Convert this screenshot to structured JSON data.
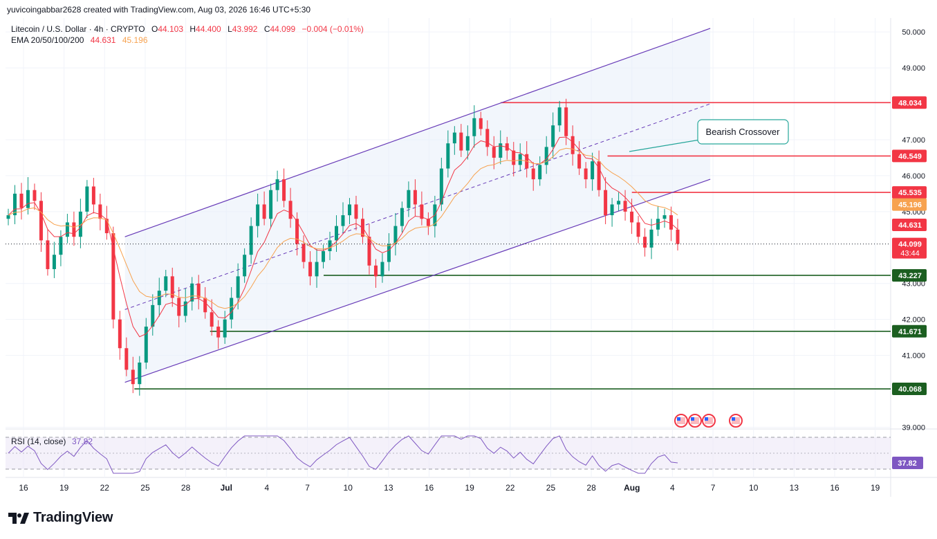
{
  "credit": "yuvicoingabbar2628 created with TradingView.com, Aug 03, 2026 16:46 UTC+5:30",
  "legend": {
    "symbol": "Litecoin / U.S. Dollar · 4h · CRYPTO",
    "o_label": "O",
    "o_value": "44.103",
    "h_label": "H",
    "h_value": "44.400",
    "l_label": "L",
    "l_value": "43.992",
    "c_label": "C",
    "c_value": "44.099",
    "change": "−0.004 (−0.01%)",
    "ema_label": "EMA 20/50/100/200",
    "ema1_value": "44.631",
    "ema2_value": "45.196"
  },
  "rsi_legend": {
    "label": "RSI (14, close)",
    "value": "37.82"
  },
  "annotation": "Bearish Crossover",
  "brand": "TradingView",
  "colors": {
    "up": "#089981",
    "down": "#f23645",
    "ema_fast": "#f23645",
    "ema_slow": "#f7a24f",
    "channel": "#673ab7",
    "resistance": "#f23645",
    "support": "#1b5e20",
    "rsi": "#7e57c2"
  },
  "chart_data": {
    "type": "candlestick",
    "timeframe": "4h",
    "x_ticks": [
      "16",
      "19",
      "22",
      "25",
      "28",
      "Jul",
      "4",
      "7",
      "10",
      "13",
      "16",
      "19",
      "22",
      "25",
      "28",
      "Aug",
      "4",
      "7",
      "10",
      "13",
      "16",
      "19"
    ],
    "y_ticks": [
      "50.000",
      "49.000",
      "47.000",
      "46.000",
      "45.000",
      "43.000",
      "42.000",
      "41.000",
      "39.000"
    ],
    "ylim": [
      38.75,
      50.2
    ],
    "price_labels": [
      {
        "value": "48.034",
        "kind": "resistance"
      },
      {
        "value": "46.549",
        "kind": "resistance"
      },
      {
        "value": "45.535",
        "kind": "resistance"
      },
      {
        "value": "45.196",
        "kind": "ema_slow"
      },
      {
        "value": "44.631",
        "kind": "ema_fast"
      },
      {
        "value": "44.099",
        "kind": "last",
        "sub": "43:44"
      },
      {
        "value": "43.227",
        "kind": "support"
      },
      {
        "value": "41.671",
        "kind": "support"
      },
      {
        "value": "40.068",
        "kind": "support"
      }
    ],
    "horizontal_levels": {
      "resistance": [
        48.034,
        46.549,
        45.535
      ],
      "support": [
        43.227,
        41.671,
        40.068
      ]
    },
    "channel": {
      "upper": [
        [
          "Jun 23",
          44.3
        ],
        [
          "Aug 5",
          50.1
        ]
      ],
      "lower": [
        [
          "Jun 23",
          40.25
        ],
        [
          "Aug 5",
          45.9
        ]
      ]
    },
    "close_series": [
      44.9,
      45.5,
      45.1,
      45.6,
      45.3,
      44.2,
      43.4,
      43.8,
      44.3,
      44.7,
      44.3,
      45.0,
      45.7,
      45.2,
      44.8,
      44.4,
      42.0,
      41.2,
      40.6,
      40.2,
      40.8,
      41.8,
      42.4,
      42.8,
      43.2,
      42.6,
      42.1,
      42.5,
      43.0,
      42.6,
      42.2,
      41.8,
      41.5,
      42.0,
      42.6,
      43.2,
      43.8,
      44.6,
      45.2,
      44.8,
      45.6,
      45.9,
      45.3,
      44.8,
      44.1,
      43.6,
      43.2,
      43.6,
      43.9,
      44.2,
      44.6,
      44.9,
      45.2,
      44.8,
      44.3,
      43.5,
      43.2,
      43.6,
      44.1,
      44.6,
      45.1,
      45.6,
      45.2,
      44.8,
      44.6,
      45.2,
      46.2,
      46.9,
      47.2,
      46.7,
      47.1,
      47.6,
      47.3,
      46.8,
      46.5,
      46.9,
      46.7,
      46.3,
      46.6,
      46.2,
      45.9,
      46.3,
      46.8,
      47.4,
      47.9,
      47.1,
      46.6,
      46.2,
      45.9,
      46.4,
      45.6,
      44.9,
      45.2,
      45.3,
      45.0,
      44.7,
      44.3,
      44.0,
      44.5,
      44.8,
      44.9,
      44.5,
      44.1
    ],
    "ema_fast_value": 44.631,
    "ema_slow_value": 45.196,
    "last_price": 44.099,
    "rsi": {
      "value": 37.82,
      "upper": 70,
      "lower": 30
    }
  }
}
